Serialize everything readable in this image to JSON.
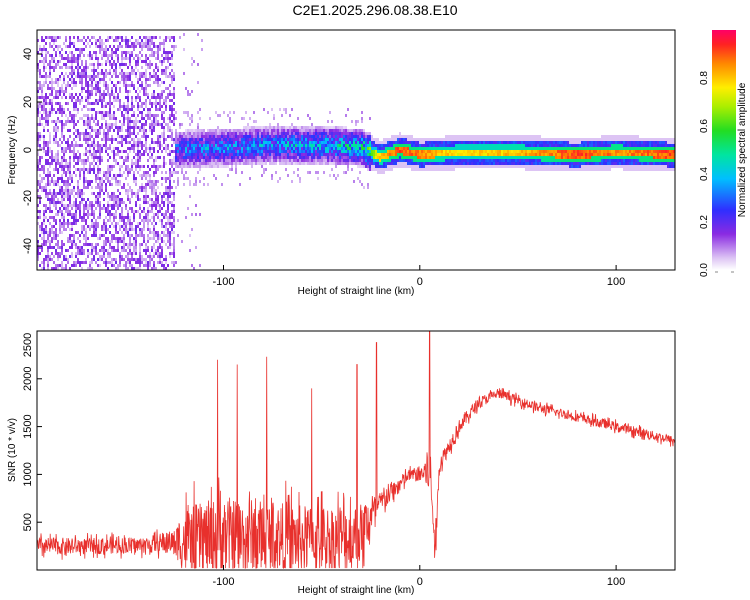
{
  "figure_title": "C2E1.2025.296.08.38.E10",
  "chart_data": [
    {
      "type": "heatmap",
      "title": "C2E1.2025.296.08.38.E10",
      "xlabel": "Height of straight line (km)",
      "ylabel": "Frequency (Hz)",
      "xlim": [
        -195,
        130
      ],
      "ylim": [
        -50,
        50
      ],
      "x_ticks": [
        -100,
        0,
        100
      ],
      "x_tick_labels": [
        "-100",
        "0",
        "100"
      ],
      "y_ticks": [
        -40,
        -20,
        0,
        20,
        40
      ],
      "y_tick_labels": [
        "-40",
        "-20",
        "0",
        "20",
        "40"
      ],
      "colorbar": {
        "label": "Normalized spectral amplitude",
        "range": [
          0,
          1
        ],
        "ticks": [
          0.0,
          0.2,
          0.4,
          0.6,
          0.8
        ],
        "tick_labels": [
          "0.0",
          "0.2",
          "0.4",
          "0.6",
          "0.8"
        ]
      },
      "regions": [
        {
          "x_range": [
            -195,
            -125
          ],
          "freq_range": [
            -50,
            48
          ],
          "amplitude": 0.1,
          "pattern": "broadband noise"
        },
        {
          "x_range": [
            -125,
            -25
          ],
          "freq_range": [
            -8,
            8
          ],
          "amplitude": 0.25,
          "pattern": "scattered signal"
        },
        {
          "x_range": [
            -25,
            130
          ],
          "freq_center": -2,
          "freq_width": 6,
          "amplitude": 0.95,
          "pattern": "narrowband line"
        }
      ],
      "ridge": {
        "x": [
          -125,
          -100,
          -75,
          -50,
          -30,
          -20,
          -10,
          0,
          20,
          50,
          80,
          100,
          130
        ],
        "freq": [
          0,
          1,
          2,
          2,
          1,
          -3,
          0,
          -2,
          -1,
          -1,
          -2,
          -1,
          -2
        ],
        "amplitude": [
          0.3,
          0.35,
          0.35,
          0.4,
          0.45,
          0.85,
          0.95,
          0.9,
          0.8,
          0.85,
          0.95,
          0.9,
          0.95
        ]
      }
    },
    {
      "type": "line",
      "xlabel": "Height of straight line (km)",
      "ylabel": "SNR (10 * v/v)",
      "xlim": [
        -195,
        130
      ],
      "ylim": [
        0,
        2500
      ],
      "x_ticks": [
        -100,
        0,
        100
      ],
      "x_tick_labels": [
        "-100",
        "0",
        "100"
      ],
      "y_ticks": [
        500,
        1000,
        1500,
        2000,
        2500
      ],
      "y_tick_labels": [
        "500",
        "1000",
        "1500",
        "2000",
        "2500"
      ],
      "color": "#e8302c",
      "envelope": {
        "x": [
          -195,
          -170,
          -140,
          -125,
          -120,
          -100,
          -80,
          -60,
          -40,
          -30,
          -20,
          -10,
          -5,
          0,
          5,
          8,
          10,
          20,
          30,
          40,
          60,
          80,
          100,
          120,
          130
        ],
        "base": [
          250,
          250,
          260,
          300,
          300,
          350,
          350,
          320,
          330,
          380,
          700,
          900,
          1000,
          1000,
          1050,
          200,
          1100,
          1500,
          1750,
          1850,
          1700,
          1600,
          1500,
          1400,
          1350
        ],
        "noise": [
          150,
          140,
          140,
          200,
          600,
          700,
          650,
          600,
          600,
          550,
          200,
          150,
          100,
          150,
          400,
          300,
          150,
          120,
          100,
          80,
          80,
          80,
          80,
          80,
          80
        ]
      },
      "spikes": [
        {
          "x": -103,
          "y": 2200
        },
        {
          "x": -93,
          "y": 2150
        },
        {
          "x": -78,
          "y": 2230
        },
        {
          "x": -55,
          "y": 1900
        },
        {
          "x": -32,
          "y": 2150
        },
        {
          "x": -22,
          "y": 2380
        },
        {
          "x": 5,
          "y": 2500
        }
      ]
    }
  ]
}
